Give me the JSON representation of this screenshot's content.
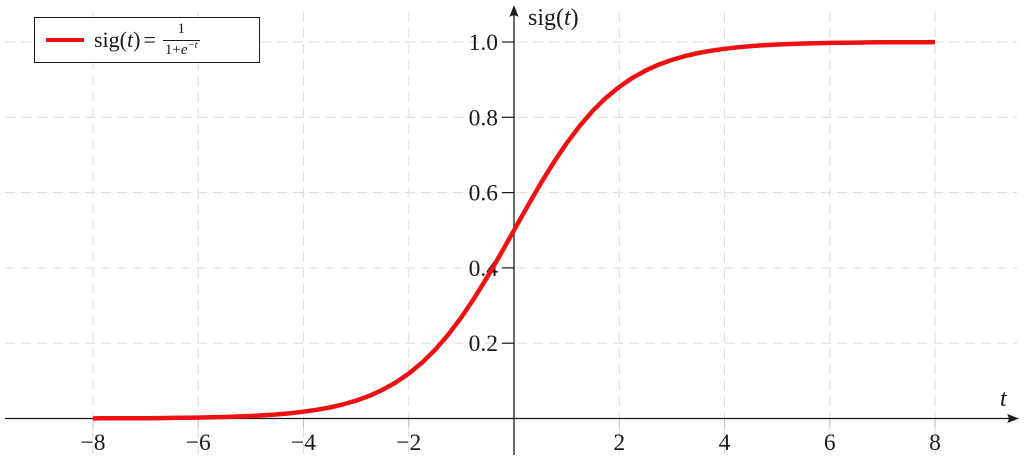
{
  "figure": {
    "bg_color": "#ffffff",
    "axis_color": "#1a1a1a",
    "grid_color": "#dedede",
    "tick_color": "#1a1a1a",
    "x_tick_stub_color": "#c4c4c4",
    "legend": {
      "fn_prefix": "sig(",
      "var": "t",
      "fn_suffix": ")",
      "equals": "=",
      "frac_num": "1",
      "frac_den_pre": "1+",
      "frac_den_e": "e",
      "frac_den_sup": "−t"
    },
    "x_axis": {
      "label": "t",
      "ticks": [
        {
          "value": -8,
          "label": "−8"
        },
        {
          "value": -6,
          "label": "−6"
        },
        {
          "value": -4,
          "label": "−4"
        },
        {
          "value": -2,
          "label": "−2"
        },
        {
          "value": 2,
          "label": "2"
        },
        {
          "value": 4,
          "label": "4"
        },
        {
          "value": 6,
          "label": "6"
        },
        {
          "value": 8,
          "label": "8"
        }
      ]
    },
    "y_axis": {
      "label_prefix": "sig(",
      "label_var": "t",
      "label_suffix": ")",
      "ticks": [
        {
          "value": 0.2,
          "label": "0.2"
        },
        {
          "value": 0.4,
          "label": "0.4"
        },
        {
          "value": 0.6,
          "label": "0.6"
        },
        {
          "value": 0.8,
          "label": "0.8"
        },
        {
          "value": 1.0,
          "label": "1.0"
        }
      ]
    }
  },
  "chart_data": {
    "type": "line",
    "title": "",
    "xlabel": "t",
    "ylabel": "sig(t)",
    "xlim": [
      -9.67,
      9.58
    ],
    "ylim": [
      -0.097,
      1.08
    ],
    "grid": true,
    "grid_style": "dashed",
    "legend_position": "top-left",
    "x_ticks": [
      -8,
      -6,
      -4,
      -2,
      2,
      4,
      6,
      8
    ],
    "y_ticks": [
      0.2,
      0.4,
      0.6,
      0.8,
      1.0
    ],
    "series": [
      {
        "name": "sig(t) = 1/(1+e^(-t))",
        "color": "#ed1111",
        "line_width": 4.5,
        "x": [
          -8,
          -7.75,
          -7.5,
          -7.25,
          -7,
          -6.75,
          -6.5,
          -6.25,
          -6,
          -5.75,
          -5.5,
          -5.25,
          -5,
          -4.75,
          -4.5,
          -4.25,
          -4,
          -3.75,
          -3.5,
          -3.25,
          -3,
          -2.75,
          -2.5,
          -2.25,
          -2,
          -1.75,
          -1.5,
          -1.25,
          -1,
          -0.75,
          -0.5,
          -0.25,
          0,
          0.25,
          0.5,
          0.75,
          1,
          1.25,
          1.5,
          1.75,
          2,
          2.25,
          2.5,
          2.75,
          3,
          3.25,
          3.5,
          3.75,
          4,
          4.25,
          4.5,
          4.75,
          5,
          5.25,
          5.5,
          5.75,
          6,
          6.25,
          6.5,
          6.75,
          7,
          7.25,
          7.5,
          7.75,
          8
        ],
        "y": [
          0.000335,
          0.000431,
          0.000553,
          0.00071,
          0.000911,
          0.00117,
          0.001503,
          0.001929,
          0.002473,
          0.003173,
          0.00407,
          0.00522,
          0.006693,
          0.008577,
          0.010987,
          0.014064,
          0.017986,
          0.022977,
          0.029312,
          0.037327,
          0.047426,
          0.060087,
          0.075858,
          0.095349,
          0.119203,
          0.148047,
          0.182426,
          0.2227,
          0.268941,
          0.320821,
          0.377541,
          0.437823,
          0.5,
          0.562177,
          0.622459,
          0.679179,
          0.731059,
          0.7773,
          0.817574,
          0.851953,
          0.880797,
          0.904651,
          0.924142,
          0.939913,
          0.952574,
          0.962673,
          0.970688,
          0.977023,
          0.982014,
          0.985936,
          0.989013,
          0.991423,
          0.993307,
          0.99478,
          0.99593,
          0.996827,
          0.997527,
          0.998071,
          0.998498,
          0.99883,
          0.999089,
          0.99929,
          0.999447,
          0.999569,
          0.999665
        ]
      }
    ]
  }
}
